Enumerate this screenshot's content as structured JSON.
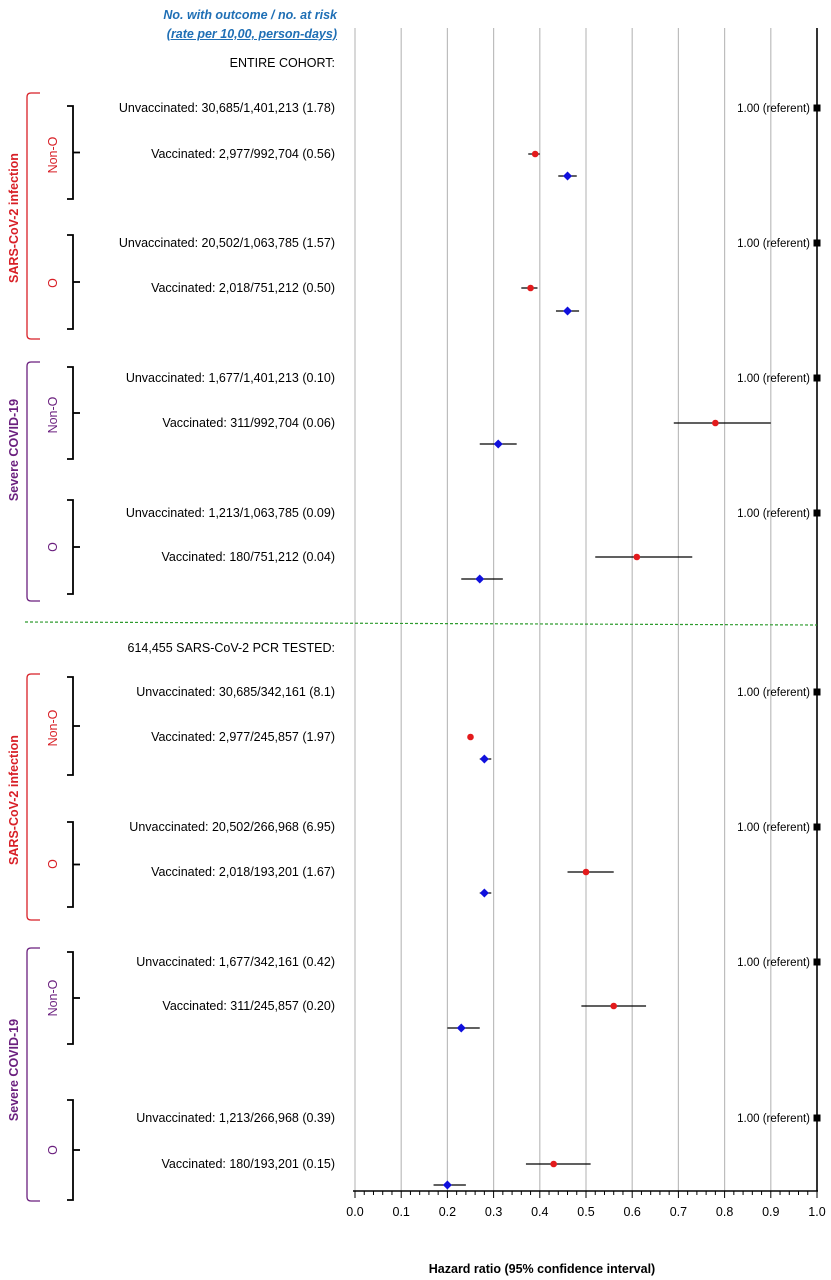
{
  "header": {
    "line1": "No. with outcome / no. at risk",
    "line2": "(rate per 10,00, person-days)"
  },
  "colors": {
    "outcome_infection": "#D81F26",
    "outcome_severe": "#6A1F7E",
    "marker_red": "#E31A1C",
    "marker_blue": "#1010DD",
    "divider": "#2E9B2E",
    "axis_title": "#000000"
  },
  "chart_data": {
    "type": "scatter",
    "xlabel": "Hazard ratio (95% confidence interval)",
    "xlim": [
      0,
      1
    ],
    "xticks": [
      "0.0",
      "0.1",
      "0.2",
      "0.3",
      "0.4",
      "0.5",
      "0.6",
      "0.7",
      "0.8",
      "0.9",
      "1.0"
    ],
    "grid": true,
    "sections": [
      {
        "title": "ENTIRE COHORT:",
        "outcomes": [
          {
            "label": "SARS-CoV-2 infection",
            "color_key": "outcome_infection",
            "groups": [
              {
                "label": "Non-O",
                "rows": [
                  {
                    "text": "Unvaccinated: 30,685/1,401,213 (1.78)",
                    "referent": "1.00 (referent)"
                  },
                  {
                    "text": "Vaccinated: 2,977/992,704 (0.56)",
                    "red": {
                      "hr": 0.39,
                      "lo": 0.375,
                      "hi": 0.4
                    },
                    "blue": {
                      "hr": 0.46,
                      "lo": 0.44,
                      "hi": 0.48
                    }
                  }
                ]
              },
              {
                "label": "O",
                "rows": [
                  {
                    "text": "Unvaccinated: 20,502/1,063,785 (1.57)",
                    "referent": "1.00 (referent)"
                  },
                  {
                    "text": "Vaccinated: 2,018/751,212 (0.50)",
                    "red": {
                      "hr": 0.38,
                      "lo": 0.36,
                      "hi": 0.395
                    },
                    "blue": {
                      "hr": 0.46,
                      "lo": 0.435,
                      "hi": 0.485
                    }
                  }
                ]
              }
            ]
          },
          {
            "label": "Severe COVID-19",
            "color_key": "outcome_severe",
            "groups": [
              {
                "label": "Non-O",
                "rows": [
                  {
                    "text": "Unvaccinated: 1,677/1,401,213 (0.10)",
                    "referent": "1.00 (referent)"
                  },
                  {
                    "text": "Vaccinated: 311/992,704 (0.06)",
                    "red": {
                      "hr": 0.78,
                      "lo": 0.69,
                      "hi": 0.9
                    },
                    "blue": {
                      "hr": 0.31,
                      "lo": 0.27,
                      "hi": 0.35
                    }
                  }
                ]
              },
              {
                "label": "O",
                "rows": [
                  {
                    "text": "Unvaccinated: 1,213/1,063,785 (0.09)",
                    "referent": "1.00 (referent)"
                  },
                  {
                    "text": "Vaccinated: 180/751,212 (0.04)",
                    "red": {
                      "hr": 0.61,
                      "lo": 0.52,
                      "hi": 0.73
                    },
                    "blue": {
                      "hr": 0.27,
                      "lo": 0.23,
                      "hi": 0.32
                    }
                  }
                ]
              }
            ]
          }
        ]
      },
      {
        "title": "614,455 SARS-CoV-2 PCR TESTED:",
        "outcomes": [
          {
            "label": "SARS-CoV-2 infection",
            "color_key": "outcome_infection",
            "groups": [
              {
                "label": "Non-O",
                "rows": [
                  {
                    "text": "Unvaccinated: 30,685/342,161 (8.1)",
                    "referent": "1.00 (referent)"
                  },
                  {
                    "text": "Vaccinated: 2,977/245,857 (1.97)",
                    "red": {
                      "hr": 0.25,
                      "lo": 0.245,
                      "hi": 0.255
                    },
                    "blue": {
                      "hr": 0.28,
                      "lo": 0.27,
                      "hi": 0.295
                    }
                  }
                ]
              },
              {
                "label": "O",
                "rows": [
                  {
                    "text": "Unvaccinated: 20,502/266,968 (6.95)",
                    "referent": "1.00 (referent)"
                  },
                  {
                    "text": "Vaccinated: 2,018/193,201 (1.67)",
                    "red": {
                      "hr": 0.5,
                      "lo": 0.46,
                      "hi": 0.56
                    },
                    "blue": {
                      "hr": 0.28,
                      "lo": 0.27,
                      "hi": 0.295
                    }
                  }
                ]
              }
            ]
          },
          {
            "label": "Severe COVID-19",
            "color_key": "outcome_severe",
            "groups": [
              {
                "label": "Non-O",
                "rows": [
                  {
                    "text": "Unvaccinated: 1,677/342,161 (0.42)",
                    "referent": "1.00 (referent)"
                  },
                  {
                    "text": "Vaccinated: 311/245,857 (0.20)",
                    "red": {
                      "hr": 0.56,
                      "lo": 0.49,
                      "hi": 0.63
                    },
                    "blue": {
                      "hr": 0.23,
                      "lo": 0.2,
                      "hi": 0.27
                    }
                  }
                ]
              },
              {
                "label": "O",
                "rows": [
                  {
                    "text": "Unvaccinated: 1,213/266,968 (0.39)",
                    "referent": "1.00 (referent)"
                  },
                  {
                    "text": "Vaccinated: 180/193,201 (0.15)",
                    "red": {
                      "hr": 0.43,
                      "lo": 0.37,
                      "hi": 0.51
                    },
                    "blue": {
                      "hr": 0.2,
                      "lo": 0.17,
                      "hi": 0.24
                    }
                  }
                ]
              }
            ]
          }
        ]
      }
    ]
  }
}
